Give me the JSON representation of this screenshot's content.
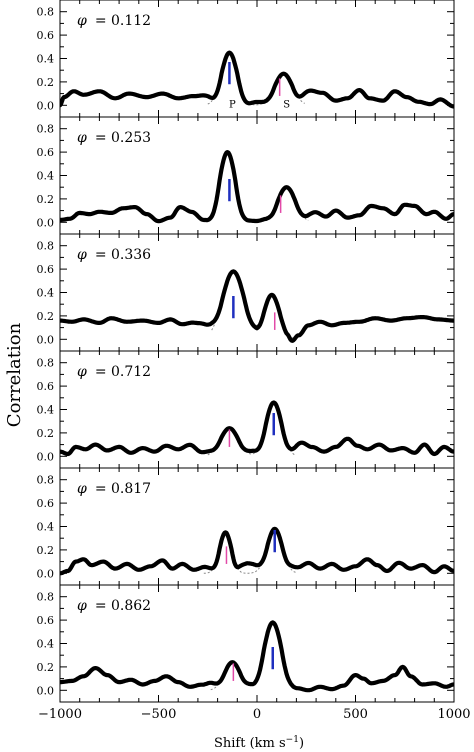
{
  "chart_data": {
    "type": "line",
    "ylabel": "Correlation",
    "xlabel": "Shift (km s",
    "xlabel_sup": "−1",
    "xlabel_close": ")",
    "xlim": [
      -1000,
      1000
    ],
    "ylim": [
      -0.1,
      0.9
    ],
    "xticks": [
      -1000,
      -500,
      0,
      500,
      1000
    ],
    "xtick_labels": [
      "−1000",
      "−500",
      "0",
      "500",
      "1000"
    ],
    "yticks": [
      0.0,
      0.2,
      0.4,
      0.6,
      0.8
    ],
    "ytick_labels": [
      "0.0",
      "0.2",
      "0.4",
      "0.6",
      "0.8"
    ],
    "phase_symbol": "φ",
    "colors": {
      "primary_marker": "#1f2fbf",
      "secondary_marker": "#e24aa8",
      "curve": "#000000",
      "fit": "#888888"
    },
    "panels": [
      {
        "phase": "= 0.112",
        "peak_labels": {
          "primary": "P",
          "secondary": "S"
        },
        "primary": {
          "x": -140,
          "y": 0.45,
          "width": 40
        },
        "secondary": {
          "x": 135,
          "y": 0.27,
          "width": 45
        },
        "markers": {
          "primary_x": -140,
          "secondary_x": 115
        },
        "baseline": 0.05,
        "wiggles": [
          [
            -1000,
            0.0
          ],
          [
            -980,
            0.07
          ],
          [
            -930,
            0.12
          ],
          [
            -880,
            0.09
          ],
          [
            -800,
            0.12
          ],
          [
            -720,
            0.06
          ],
          [
            -650,
            0.1
          ],
          [
            -560,
            0.07
          ],
          [
            -480,
            0.1
          ],
          [
            -400,
            0.06
          ],
          [
            -320,
            0.08
          ],
          [
            -250,
            0.1
          ],
          [
            -200,
            0.06
          ],
          [
            -160,
            0.08
          ],
          [
            -100,
            0.04
          ],
          [
            -60,
            0.01
          ],
          [
            0,
            0.03
          ],
          [
            60,
            0.04
          ],
          [
            180,
            0.06
          ],
          [
            250,
            0.16
          ],
          [
            330,
            0.11
          ],
          [
            400,
            0.04
          ],
          [
            460,
            0.06
          ],
          [
            520,
            0.13
          ],
          [
            570,
            0.06
          ],
          [
            640,
            0.04
          ],
          [
            700,
            0.12
          ],
          [
            760,
            0.07
          ],
          [
            820,
            0.03
          ],
          [
            880,
            0.01
          ],
          [
            930,
            0.05
          ],
          [
            1000,
            -0.01
          ]
        ]
      },
      {
        "phase": "= 0.253",
        "primary": {
          "x": -150,
          "y": 0.6,
          "width": 40
        },
        "secondary": {
          "x": 150,
          "y": 0.3,
          "width": 45
        },
        "markers": {
          "primary_x": -140,
          "secondary_x": 120
        },
        "baseline": 0.05,
        "wiggles": [
          [
            -1000,
            0.02
          ],
          [
            -950,
            0.03
          ],
          [
            -900,
            0.08
          ],
          [
            -850,
            0.07
          ],
          [
            -800,
            0.09
          ],
          [
            -740,
            0.08
          ],
          [
            -680,
            0.12
          ],
          [
            -620,
            0.13
          ],
          [
            -560,
            0.07
          ],
          [
            -500,
            0.01
          ],
          [
            -440,
            0.04
          ],
          [
            -390,
            0.13
          ],
          [
            -330,
            0.09
          ],
          [
            -270,
            0.02
          ],
          [
            -220,
            0.01
          ],
          [
            -100,
            0.02
          ],
          [
            0,
            0.01
          ],
          [
            60,
            0.04
          ],
          [
            100,
            0.02
          ],
          [
            230,
            0.07
          ],
          [
            290,
            0.1
          ],
          [
            350,
            0.05
          ],
          [
            400,
            0.1
          ],
          [
            460,
            0.04
          ],
          [
            520,
            0.06
          ],
          [
            580,
            0.14
          ],
          [
            640,
            0.12
          ],
          [
            700,
            0.07
          ],
          [
            750,
            0.15
          ],
          [
            800,
            0.14
          ],
          [
            860,
            0.07
          ],
          [
            900,
            0.09
          ],
          [
            960,
            0.03
          ],
          [
            1000,
            0.07
          ]
        ]
      },
      {
        "phase": "= 0.336",
        "primary": {
          "x": -120,
          "y": 0.58,
          "width": 55
        },
        "secondary": {
          "x": 75,
          "y": 0.38,
          "width": 40
        },
        "markers": {
          "primary_x": -120,
          "secondary_x": 90
        },
        "baseline": 0.15,
        "wiggles": [
          [
            -1000,
            0.16
          ],
          [
            -940,
            0.15
          ],
          [
            -880,
            0.17
          ],
          [
            -800,
            0.14
          ],
          [
            -740,
            0.18
          ],
          [
            -660,
            0.15
          ],
          [
            -580,
            0.16
          ],
          [
            -500,
            0.14
          ],
          [
            -440,
            0.17
          ],
          [
            -380,
            0.13
          ],
          [
            -320,
            0.15
          ],
          [
            -260,
            0.16
          ],
          [
            -220,
            0.22
          ],
          [
            0,
            0.14
          ],
          [
            30,
            0.12
          ],
          [
            120,
            0.12
          ],
          [
            150,
            0.03
          ],
          [
            175,
            -0.05
          ],
          [
            210,
            0.03
          ],
          [
            260,
            0.12
          ],
          [
            320,
            0.15
          ],
          [
            380,
            0.12
          ],
          [
            440,
            0.14
          ],
          [
            520,
            0.15
          ],
          [
            600,
            0.18
          ],
          [
            680,
            0.16
          ],
          [
            760,
            0.18
          ],
          [
            840,
            0.19
          ],
          [
            920,
            0.17
          ],
          [
            1000,
            0.16
          ]
        ]
      },
      {
        "phase": "= 0.712",
        "primary": {
          "x": 85,
          "y": 0.46,
          "width": 40
        },
        "secondary": {
          "x": -140,
          "y": 0.24,
          "width": 45
        },
        "markers": {
          "primary_x": 85,
          "secondary_x": -140
        },
        "baseline": 0.03,
        "wiggles": [
          [
            -1000,
            0.04
          ],
          [
            -960,
            0.02
          ],
          [
            -920,
            0.08
          ],
          [
            -870,
            0.06
          ],
          [
            -820,
            0.1
          ],
          [
            -760,
            0.05
          ],
          [
            -700,
            0.08
          ],
          [
            -640,
            0.03
          ],
          [
            -580,
            0.07
          ],
          [
            -520,
            0.04
          ],
          [
            -460,
            0.09
          ],
          [
            -400,
            0.06
          ],
          [
            -340,
            0.1
          ],
          [
            -280,
            0.04
          ],
          [
            -230,
            0.07
          ],
          [
            -60,
            0.07
          ],
          [
            0,
            0.06
          ],
          [
            170,
            0.08
          ],
          [
            220,
            0.13
          ],
          [
            280,
            0.08
          ],
          [
            340,
            0.04
          ],
          [
            400,
            0.08
          ],
          [
            460,
            0.15
          ],
          [
            510,
            0.09
          ],
          [
            560,
            0.06
          ],
          [
            620,
            0.1
          ],
          [
            680,
            0.05
          ],
          [
            740,
            0.07
          ],
          [
            800,
            0.03
          ],
          [
            850,
            0.1
          ],
          [
            900,
            0.02
          ],
          [
            950,
            0.08
          ],
          [
            1000,
            0.04
          ]
        ]
      },
      {
        "phase": "= 0.817",
        "primary": {
          "x": 90,
          "y": 0.38,
          "width": 38
        },
        "secondary": {
          "x": -160,
          "y": 0.35,
          "width": 30
        },
        "markers": {
          "primary_x": 90,
          "secondary_x": -155
        },
        "baseline": 0.03,
        "wiggles": [
          [
            -1000,
            0.0
          ],
          [
            -960,
            0.02
          ],
          [
            -920,
            0.1
          ],
          [
            -880,
            0.12
          ],
          [
            -840,
            0.07
          ],
          [
            -780,
            0.1
          ],
          [
            -720,
            0.04
          ],
          [
            -660,
            0.08
          ],
          [
            -600,
            0.03
          ],
          [
            -540,
            0.06
          ],
          [
            -480,
            0.11
          ],
          [
            -430,
            0.04
          ],
          [
            -380,
            0.08
          ],
          [
            -320,
            0.03
          ],
          [
            -260,
            0.06
          ],
          [
            -120,
            0.03
          ],
          [
            -80,
            0.09
          ],
          [
            0,
            0.1
          ],
          [
            40,
            0.12
          ],
          [
            160,
            0.1
          ],
          [
            210,
            0.06
          ],
          [
            260,
            0.09
          ],
          [
            320,
            0.04
          ],
          [
            380,
            0.08
          ],
          [
            440,
            0.03
          ],
          [
            500,
            0.06
          ],
          [
            560,
            0.12
          ],
          [
            610,
            0.07
          ],
          [
            660,
            0.02
          ],
          [
            720,
            0.09
          ],
          [
            780,
            0.04
          ],
          [
            840,
            0.07
          ],
          [
            900,
            0.01
          ],
          [
            950,
            0.06
          ],
          [
            1000,
            0.02
          ]
        ]
      },
      {
        "phase": "= 0.862",
        "primary": {
          "x": 80,
          "y": 0.58,
          "width": 45
        },
        "secondary": {
          "x": -125,
          "y": 0.24,
          "width": 40
        },
        "markers": {
          "primary_x": 80,
          "secondary_x": -120
        },
        "baseline": 0.03,
        "wiggles": [
          [
            -1000,
            0.07
          ],
          [
            -940,
            0.08
          ],
          [
            -880,
            0.12
          ],
          [
            -820,
            0.19
          ],
          [
            -760,
            0.13
          ],
          [
            -700,
            0.07
          ],
          [
            -640,
            0.09
          ],
          [
            -580,
            0.05
          ],
          [
            -520,
            0.08
          ],
          [
            -460,
            0.12
          ],
          [
            -400,
            0.07
          ],
          [
            -340,
            0.03
          ],
          [
            -280,
            0.05
          ],
          [
            -220,
            0.09
          ],
          [
            -50,
            0.09
          ],
          [
            -10,
            0.05
          ],
          [
            150,
            0.05
          ],
          [
            200,
            0.02
          ],
          [
            260,
            0.0
          ],
          [
            320,
            0.03
          ],
          [
            380,
            0.01
          ],
          [
            440,
            0.04
          ],
          [
            500,
            0.13
          ],
          [
            540,
            0.1
          ],
          [
            580,
            0.06
          ],
          [
            640,
            0.08
          ],
          [
            700,
            0.13
          ],
          [
            740,
            0.2
          ],
          [
            780,
            0.12
          ],
          [
            840,
            0.05
          ],
          [
            900,
            0.06
          ],
          [
            960,
            0.03
          ],
          [
            1000,
            0.05
          ]
        ]
      }
    ]
  }
}
